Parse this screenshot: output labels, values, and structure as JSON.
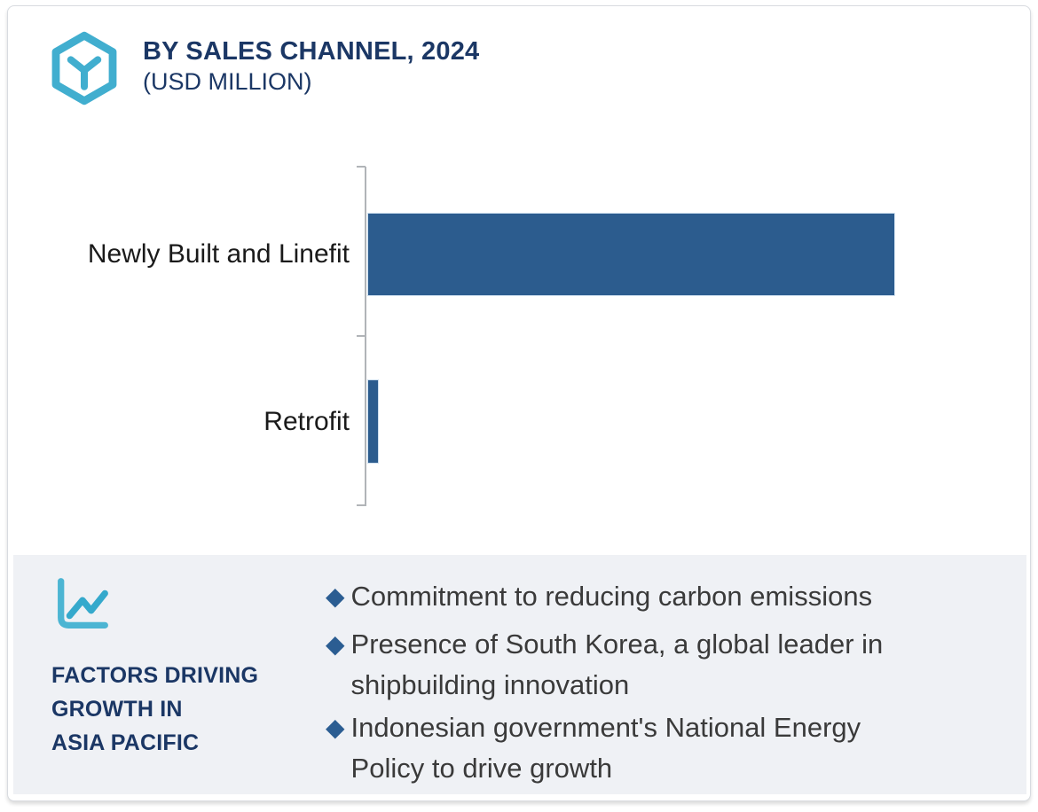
{
  "header": {
    "title_line1": "BY SALES CHANNEL, 2024",
    "title_line2": "(USD MILLION)",
    "logo_icon": "hexagon-y-logo"
  },
  "chart_data": {
    "type": "bar",
    "orientation": "horizontal",
    "title": "BY SALES CHANNEL, 2024 (USD MILLION)",
    "categories": [
      "Newly Built and Linefit",
      "Retrofit"
    ],
    "values_relative_pct_of_max": [
      100,
      2.2
    ],
    "units": "USD Million",
    "value_labels_shown": false,
    "axis_tick_labels_shown": false,
    "grid": false,
    "legend": false,
    "bar_color": "#2c5c8e"
  },
  "factors_panel": {
    "icon": "line-chart-icon",
    "heading_lines": [
      "FACTORS DRIVING",
      "GROWTH IN",
      "ASIA PACIFIC"
    ],
    "bullets": [
      {
        "lines": [
          "Commitment to reducing carbon emissions"
        ]
      },
      {
        "lines": [
          "Presence of South Korea, a global leader in",
          "shipbuilding innovation"
        ]
      },
      {
        "lines": [
          "Indonesian government's National Energy",
          "Policy to drive growth"
        ]
      }
    ]
  },
  "colors": {
    "accent_teal": "#41aecf",
    "navy": "#1b3765",
    "bar_blue": "#2c5c8e",
    "bullet_diamond": "#2b5d92",
    "panel_bg": "#eff1f5",
    "axis_gray": "#b1b4b8"
  },
  "bullet_glyph": "◆"
}
